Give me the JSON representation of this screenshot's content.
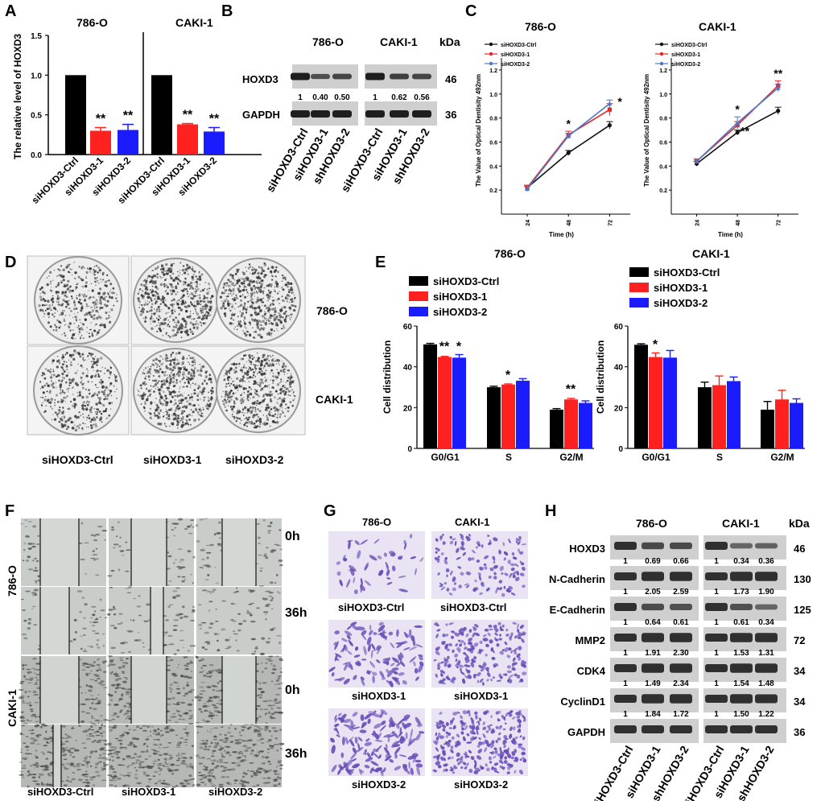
{
  "colors": {
    "ctrl": "#000000",
    "kd1": "#ff2020",
    "kd2": "#1b1bff",
    "blot_bg": "#cfcfcf",
    "band": "#1e1e1e",
    "plate_bg": "#ececec",
    "colony": "#3a3a3a",
    "scratch_bg": "#c9cdc9",
    "violet": "#6a4fb8",
    "violet_bg": "#e9e3f4",
    "line_ctrl": "#111111",
    "line_kd1": "#e8252a",
    "line_kd2": "#4a78c8"
  },
  "panels": {
    "A": {
      "label": "A",
      "ylabel": "The relative level of HOXD3",
      "groups": [
        "786-O",
        "CAKI-1"
      ],
      "ticks": [
        "0.0",
        "0.5",
        "1.0",
        "1.5"
      ],
      "ylim": [
        0,
        1.5
      ],
      "categories": [
        "siHOXD3-Ctrl",
        "siHOXD3-1",
        "siHOXD3-2",
        "siHOXD3-Ctrl",
        "siHOXD3-1",
        "siHOXD3-2"
      ],
      "sig": "**"
    },
    "B": {
      "label": "B",
      "groups": [
        "786-O",
        "CAKI-1"
      ],
      "kda_label": "kDa",
      "rows": [
        {
          "name": "HOXD3",
          "kda": "46"
        },
        {
          "name": "GAPDH",
          "kda": "36"
        }
      ],
      "ratios_786": [
        "1",
        "0.40",
        "0.50"
      ],
      "ratios_caki": [
        "1",
        "0.62",
        "0.56"
      ],
      "lanes": [
        "siHOXD3-Ctrl",
        "siHOXD3-1",
        "shHOXD3-2",
        "siHOXD3-Ctrl",
        "siHOXD3-1",
        "shHOXD3-2"
      ]
    },
    "C": {
      "label": "C",
      "titles": [
        "786-O",
        "CAKI-1"
      ],
      "legend": [
        "siHOXD3-Ctrl",
        "siHOXD3-1",
        "siHOXD3-2"
      ],
      "ylabel": "The Value of Optical Dentisity 492nm",
      "xlabel": "Time (h)",
      "xticks": [
        "24",
        "48",
        "72"
      ],
      "yticks": [
        "0.2",
        "0.4",
        "0.6",
        "0.8",
        "1.0",
        "1.2"
      ],
      "sig": [
        "*",
        "**"
      ]
    },
    "D": {
      "label": "D",
      "row_labels": [
        "786-O",
        "CAKI-1"
      ],
      "col_labels": [
        "siHOXD3-Ctrl",
        "siHOXD3-1",
        "siHOXD3-2"
      ]
    },
    "E": {
      "label": "E",
      "titles": [
        "786-O",
        "CAKI-1"
      ],
      "legend": [
        "siHOXD3-Ctrl",
        "siHOXD3-1",
        "siHOXD3-2"
      ],
      "ylabel": "Cell distribution",
      "xcats": [
        "G0/G1",
        "S",
        "G2/M"
      ],
      "yticks": [
        "0",
        "20",
        "40",
        "60"
      ],
      "ylim": [
        0,
        60
      ],
      "sig": [
        "**",
        "*"
      ]
    },
    "F": {
      "label": "F",
      "cells": [
        "786-O",
        "CAKI-1"
      ],
      "times": [
        "0h",
        "36h",
        "0h",
        "36h"
      ],
      "col_labels": [
        "siHOXD3-Ctrl",
        "siHOXD3-1",
        "siHOXD3-2"
      ]
    },
    "G": {
      "label": "G",
      "titles": [
        "786-O",
        "CAKI-1"
      ],
      "captions": [
        "siHOXD3-Ctrl",
        "siHOXD3-Ctrl",
        "siHOXD3-1",
        "siHOXD3-1",
        "siHOXD3-2",
        "siHOXD3-2"
      ]
    },
    "H": {
      "label": "H",
      "titles": [
        "786-O",
        "CAKI-1"
      ],
      "kda_label": "kDa",
      "rows": [
        {
          "name": "HOXD3",
          "kda": "46",
          "r786": [
            "1",
            "0.69",
            "0.66"
          ],
          "rcaki": [
            "1",
            "0.34",
            "0.36"
          ]
        },
        {
          "name": "N-Cadherin",
          "kda": "130",
          "r786": [
            "1",
            "2.05",
            "2.59"
          ],
          "rcaki": [
            "1",
            "1.73",
            "1.90"
          ]
        },
        {
          "name": "E-Cadherin",
          "kda": "125",
          "r786": [
            "1",
            "0.64",
            "0.61"
          ],
          "rcaki": [
            "1",
            "0.61",
            "0.34"
          ]
        },
        {
          "name": "MMP2",
          "kda": "72",
          "r786": [
            "1",
            "1.91",
            "2.30"
          ],
          "rcaki": [
            "1",
            "1.53",
            "1.31"
          ]
        },
        {
          "name": "CDK4",
          "kda": "34",
          "r786": [
            "1",
            "1.49",
            "2.34"
          ],
          "rcaki": [
            "1",
            "1.54",
            "1.48"
          ]
        },
        {
          "name": "CyclinD1",
          "kda": "34",
          "r786": [
            "1",
            "1.84",
            "1.72"
          ],
          "rcaki": [
            "1",
            "1.50",
            "1.22"
          ]
        },
        {
          "name": "GAPDH",
          "kda": "36",
          "r786": [],
          "rcaki": []
        }
      ],
      "lanes": [
        "siHOXD3-Ctrl",
        "siHOXD3-1",
        "shHOXD3-2",
        "siHOXD3-Ctrl",
        "siHOXD3-1",
        "shHOXD3-2"
      ]
    }
  },
  "chart_data": [
    {
      "type": "bar",
      "title": "786-O",
      "ylabel": "The relative level of HOXD3",
      "categories": [
        "siHOXD3-Ctrl",
        "siHOXD3-1",
        "siHOXD3-2"
      ],
      "values": [
        1.0,
        0.3,
        0.31
      ],
      "errors": [
        0,
        0.04,
        0.07
      ],
      "ylim": [
        0,
        1.5
      ]
    },
    {
      "type": "bar",
      "title": "CAKI-1",
      "ylabel": "The relative level of HOXD3",
      "categories": [
        "siHOXD3-Ctrl",
        "siHOXD3-1",
        "siHOXD3-2"
      ],
      "values": [
        1.0,
        0.38,
        0.29
      ],
      "errors": [
        0,
        0.01,
        0.05
      ],
      "ylim": [
        0,
        1.5
      ]
    },
    {
      "type": "line",
      "title": "786-O",
      "xlabel": "Time (h)",
      "ylabel": "The Value of Optical Dentisity 492nm",
      "x": [
        24,
        48,
        72
      ],
      "ylim": [
        0,
        1.3
      ],
      "series": [
        {
          "name": "siHOXD3-Ctrl",
          "values": [
            0.22,
            0.51,
            0.74
          ],
          "errors": [
            0.02,
            0.02,
            0.03
          ]
        },
        {
          "name": "siHOXD3-1",
          "values": [
            0.22,
            0.66,
            0.87
          ],
          "errors": [
            0.02,
            0.03,
            0.05
          ]
        },
        {
          "name": "siHOXD3-2",
          "values": [
            0.21,
            0.65,
            0.92
          ],
          "errors": [
            0.02,
            0.02,
            0.03
          ]
        }
      ]
    },
    {
      "type": "line",
      "title": "CAKI-1",
      "xlabel": "Time (h)",
      "ylabel": "The Value of Optical Dentisity 492nm",
      "x": [
        24,
        48,
        72
      ],
      "ylim": [
        0,
        1.3
      ],
      "series": [
        {
          "name": "siHOXD3-Ctrl",
          "values": [
            0.42,
            0.68,
            0.86
          ],
          "errors": [
            0.02,
            0.02,
            0.03
          ]
        },
        {
          "name": "siHOXD3-1",
          "values": [
            0.44,
            0.74,
            1.07
          ],
          "errors": [
            0.02,
            0.03,
            0.04
          ]
        },
        {
          "name": "siHOXD3-2",
          "values": [
            0.44,
            0.76,
            1.05
          ],
          "errors": [
            0.02,
            0.05,
            0.03
          ]
        }
      ]
    },
    {
      "type": "bar",
      "title": "786-O",
      "ylabel": "Cell distribution",
      "categories": [
        "G0/G1",
        "S",
        "G2/M"
      ],
      "ylim": [
        0,
        60
      ],
      "series": [
        {
          "name": "siHOXD3-Ctrl",
          "values": [
            51,
            30,
            19
          ],
          "errors": [
            0.5,
            0.5,
            0.5
          ]
        },
        {
          "name": "siHOXD3-1",
          "values": [
            44.8,
            31.3,
            24
          ],
          "errors": [
            0.3,
            0.3,
            0.5
          ]
        },
        {
          "name": "siHOXD3-2",
          "values": [
            44.5,
            33.2,
            22.3
          ],
          "errors": [
            1.5,
            1,
            1
          ]
        }
      ]
    },
    {
      "type": "bar",
      "title": "CAKI-1",
      "ylabel": "Cell distribution",
      "categories": [
        "G0/G1",
        "S",
        "G2/M"
      ],
      "ylim": [
        0,
        60
      ],
      "series": [
        {
          "name": "siHOXD3-Ctrl",
          "values": [
            50.8,
            30,
            19
          ],
          "errors": [
            0.5,
            2.5,
            4
          ]
        },
        {
          "name": "siHOXD3-1",
          "values": [
            44.8,
            31,
            24
          ],
          "errors": [
            2,
            4.5,
            4.5
          ]
        },
        {
          "name": "siHOXD3-2",
          "values": [
            44.5,
            33,
            22.3
          ],
          "errors": [
            3.5,
            2,
            2
          ]
        }
      ]
    }
  ]
}
